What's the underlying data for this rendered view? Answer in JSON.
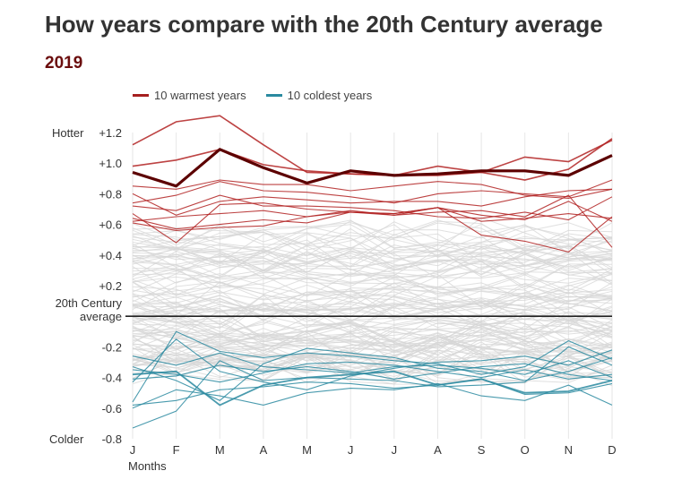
{
  "title": "How years compare with the 20th Century average",
  "subtitle": "2019",
  "legend": {
    "warm_label": "10 warmest years",
    "cold_label": "10 coldest years"
  },
  "colors": {
    "warm": "#b22222",
    "cold": "#2a8aa0",
    "highlight": "#5c0000",
    "background_series": "#d6d6d6",
    "baseline": "#222222"
  },
  "chart_data": {
    "type": "line",
    "title": "How years compare with the 20th Century average",
    "subtitle": "2019",
    "xlabel": "Months",
    "ylabel": "",
    "categories": [
      "J",
      "F",
      "M",
      "A",
      "M",
      "J",
      "J",
      "A",
      "S",
      "O",
      "N",
      "D"
    ],
    "ylim": [
      -0.8,
      1.2
    ],
    "yticks": [
      "+1.2",
      "+1.0",
      "+0.8",
      "+0.6",
      "+0.4",
      "+0.2",
      "-0.2",
      "-0.4",
      "-0.6",
      "-0.8"
    ],
    "ytick_values": [
      1.2,
      1.0,
      0.8,
      0.6,
      0.4,
      0.2,
      -0.2,
      -0.4,
      -0.6,
      -0.8
    ],
    "y_annotations": {
      "top": "Hotter",
      "baseline_line1": "20th Century",
      "baseline_line2": "average",
      "bottom": "Colder"
    },
    "grid": "vertical",
    "legend_position": "top-left",
    "highlight_series": {
      "name": "2019",
      "values": [
        0.94,
        0.85,
        1.09,
        0.97,
        0.87,
        0.95,
        0.92,
        0.93,
        0.95,
        0.95,
        0.92,
        1.05
      ]
    },
    "warm_series": [
      [
        1.12,
        1.27,
        1.31,
        1.12,
        0.94,
        0.93,
        0.92,
        0.98,
        0.94,
        0.89,
        0.96,
        1.16
      ],
      [
        0.98,
        1.02,
        1.09,
        0.99,
        0.95,
        0.93,
        0.92,
        0.92,
        0.94,
        1.04,
        1.01,
        1.15
      ],
      [
        0.85,
        0.83,
        0.89,
        0.86,
        0.86,
        0.82,
        0.85,
        0.88,
        0.86,
        0.79,
        0.77,
        0.83
      ],
      [
        0.74,
        0.79,
        0.88,
        0.82,
        0.81,
        0.78,
        0.74,
        0.8,
        0.82,
        0.8,
        0.78,
        0.89
      ],
      [
        0.8,
        0.66,
        0.75,
        0.78,
        0.76,
        0.74,
        0.75,
        0.75,
        0.72,
        0.78,
        0.82,
        0.83
      ],
      [
        0.67,
        0.48,
        0.73,
        0.74,
        0.7,
        0.68,
        0.66,
        0.71,
        0.53,
        0.49,
        0.42,
        0.65
      ],
      [
        0.64,
        0.57,
        0.6,
        0.63,
        0.61,
        0.68,
        0.67,
        0.71,
        0.66,
        0.63,
        0.75,
        0.62
      ],
      [
        0.61,
        0.56,
        0.58,
        0.59,
        0.65,
        0.69,
        0.66,
        0.68,
        0.69,
        0.65,
        0.79,
        0.45
      ],
      [
        0.62,
        0.65,
        0.67,
        0.69,
        0.65,
        0.68,
        0.67,
        0.71,
        0.62,
        0.64,
        0.67,
        0.64
      ],
      [
        0.72,
        0.69,
        0.79,
        0.72,
        0.72,
        0.71,
        0.69,
        0.65,
        0.64,
        0.68,
        0.63,
        0.78
      ]
    ],
    "cold_series": [
      [
        -0.38,
        -0.36,
        -0.58,
        -0.45,
        -0.4,
        -0.38,
        -0.36,
        -0.45,
        -0.41,
        -0.5,
        -0.49,
        -0.42
      ],
      [
        -0.56,
        -0.1,
        -0.23,
        -0.27,
        -0.24,
        -0.26,
        -0.29,
        -0.31,
        -0.38,
        -0.33,
        -0.16,
        -0.28
      ],
      [
        -0.73,
        -0.62,
        -0.29,
        -0.42,
        -0.4,
        -0.41,
        -0.42,
        -0.46,
        -0.45,
        -0.43,
        -0.2,
        -0.32
      ],
      [
        -0.43,
        -0.15,
        -0.36,
        -0.43,
        -0.48,
        -0.39,
        -0.34,
        -0.3,
        -0.29,
        -0.26,
        -0.32,
        -0.22
      ],
      [
        -0.6,
        -0.48,
        -0.52,
        -0.58,
        -0.5,
        -0.47,
        -0.48,
        -0.44,
        -0.52,
        -0.55,
        -0.45,
        -0.58
      ],
      [
        -0.26,
        -0.32,
        -0.24,
        -0.33,
        -0.35,
        -0.37,
        -0.33,
        -0.32,
        -0.34,
        -0.38,
        -0.29,
        -0.4
      ],
      [
        -0.35,
        -0.38,
        -0.43,
        -0.37,
        -0.31,
        -0.3,
        -0.32,
        -0.36,
        -0.4,
        -0.35,
        -0.41,
        -0.38
      ],
      [
        -0.58,
        -0.55,
        -0.48,
        -0.46,
        -0.43,
        -0.44,
        -0.47,
        -0.45,
        -0.41,
        -0.51,
        -0.5,
        -0.44
      ],
      [
        -0.33,
        -0.42,
        -0.55,
        -0.31,
        -0.21,
        -0.24,
        -0.27,
        -0.34,
        -0.36,
        -0.42,
        -0.36,
        -0.27
      ],
      [
        -0.41,
        -0.39,
        -0.32,
        -0.36,
        -0.33,
        -0.36,
        -0.41,
        -0.37,
        -0.33,
        -0.31,
        -0.38,
        -0.42
      ]
    ]
  }
}
